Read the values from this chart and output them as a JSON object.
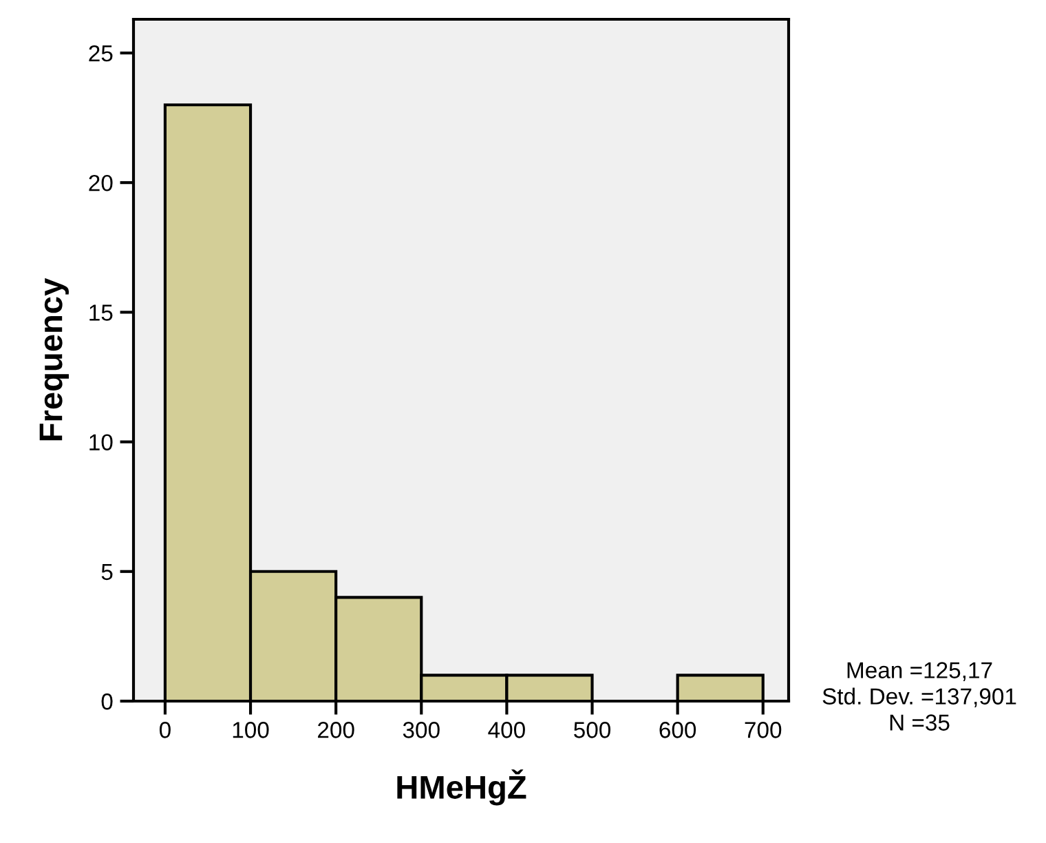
{
  "chart_data": {
    "type": "histogram",
    "xlabel": "HMeHgŽ",
    "ylabel": "Frequency",
    "bins": [
      0,
      100,
      200,
      300,
      400,
      500,
      600,
      700
    ],
    "values": [
      23,
      5,
      4,
      1,
      1,
      0,
      1
    ],
    "color": "#d3ce97",
    "xlim": [
      -37,
      730
    ],
    "xticks": [
      0,
      100,
      200,
      300,
      400,
      500,
      600,
      700
    ],
    "ylim": [
      0,
      26.3
    ],
    "yticks": [
      0,
      5,
      10,
      15,
      20,
      25
    ],
    "grid": false,
    "annotations": [
      "Mean =125,17",
      "Std. Dev. =137,901",
      "N =35"
    ]
  }
}
